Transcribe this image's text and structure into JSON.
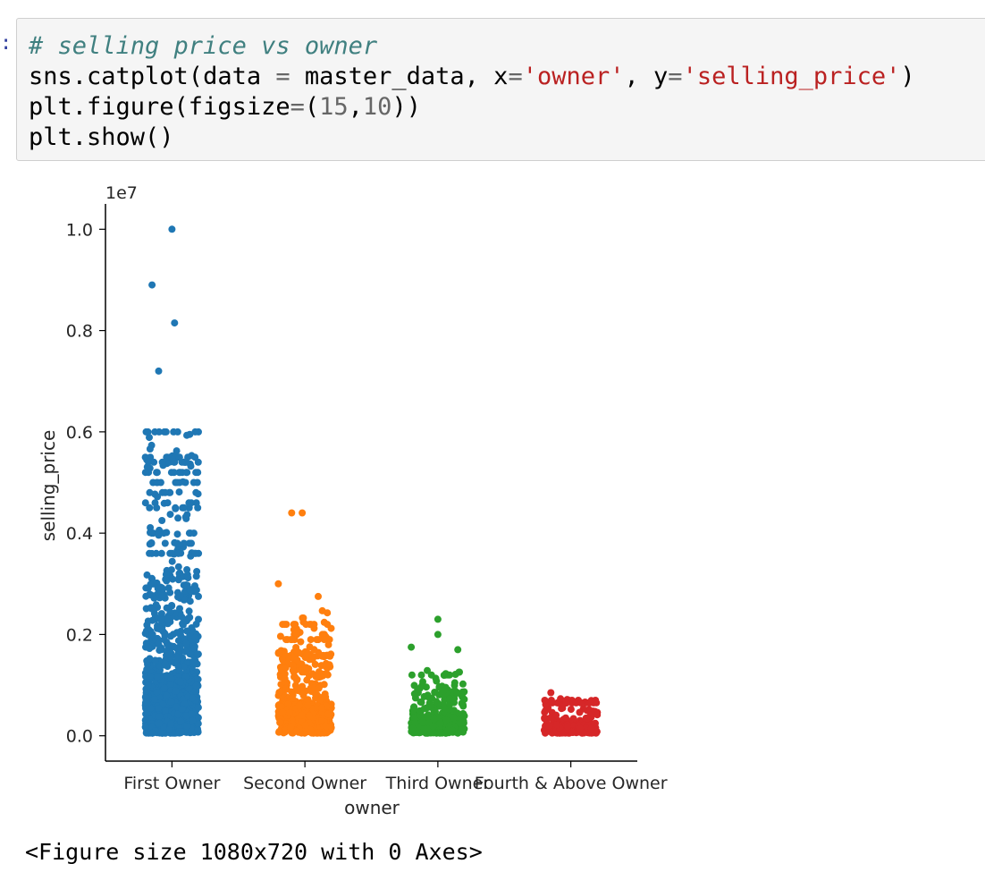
{
  "cell": {
    "prompt": ":",
    "comment": "# selling price vs owner",
    "line2": {
      "a": "sns.catplot(data ",
      "eq1": "=",
      "b": " master_data, x",
      "eq2": "=",
      "s1": "'owner'",
      "c": ", y",
      "eq3": "=",
      "s2": "'selling_price'",
      "d": ")"
    },
    "line3": {
      "a": "plt.figure(figsize",
      "eq": "=",
      "b": "(",
      "n1": "15",
      "comma": ",",
      "n2": "10",
      "c": "))"
    },
    "line4": "plt.show()"
  },
  "output_text": "<Figure size 1080x720 with 0 Axes>",
  "colors": {
    "First Owner": "#1f77b4",
    "Second Owner": "#ff7f0e",
    "Third Owner": "#2ca02c",
    "Fourth & Above Owner": "#d62728"
  },
  "chart_data": {
    "type": "scatter",
    "subtype": "strip",
    "xlabel": "owner",
    "ylabel": "selling_price",
    "offset_label": "1e7",
    "ylim": [
      -0.05,
      1.05
    ],
    "yticks": [
      0.0,
      0.2,
      0.4,
      0.6,
      0.8,
      1.0
    ],
    "ytick_labels": [
      "0.0",
      "0.2",
      "0.4",
      "0.6",
      "0.8",
      "1.0"
    ],
    "categories": [
      "First Owner",
      "Second Owner",
      "Third Owner",
      "Fourth & Above Owner"
    ],
    "grid": false,
    "series": [
      {
        "category": "First Owner",
        "outliers": [
          [
            0.0,
            1.0
          ],
          [
            -0.15,
            0.89
          ],
          [
            0.02,
            0.815
          ],
          [
            -0.1,
            0.72
          ]
        ],
        "min": 0.005,
        "dense_max": 0.33,
        "sparse_max": 0.6,
        "clusters": [
          0.6,
          0.55,
          0.54,
          0.52,
          0.5,
          0.48,
          0.46,
          0.45,
          0.4,
          0.38,
          0.36
        ]
      },
      {
        "category": "Second Owner",
        "outliers": [
          [
            -0.1,
            0.44
          ],
          [
            -0.02,
            0.44
          ],
          [
            -0.2,
            0.3
          ],
          [
            0.1,
            0.275
          ]
        ],
        "min": 0.005,
        "dense_max": 0.17,
        "sparse_max": 0.25,
        "clusters": [
          0.22,
          0.2,
          0.19
        ]
      },
      {
        "category": "Third Owner",
        "outliers": [
          [
            0.0,
            0.23
          ],
          [
            0.0,
            0.2
          ],
          [
            -0.2,
            0.175
          ],
          [
            0.15,
            0.17
          ]
        ],
        "min": 0.005,
        "dense_max": 0.1,
        "sparse_max": 0.13,
        "clusters": [
          0.12
        ]
      },
      {
        "category": "Fourth & Above Owner",
        "outliers": [
          [
            -0.15,
            0.085
          ]
        ],
        "min": 0.005,
        "dense_max": 0.055,
        "sparse_max": 0.075,
        "clusters": [
          0.07,
          0.065
        ]
      }
    ]
  }
}
